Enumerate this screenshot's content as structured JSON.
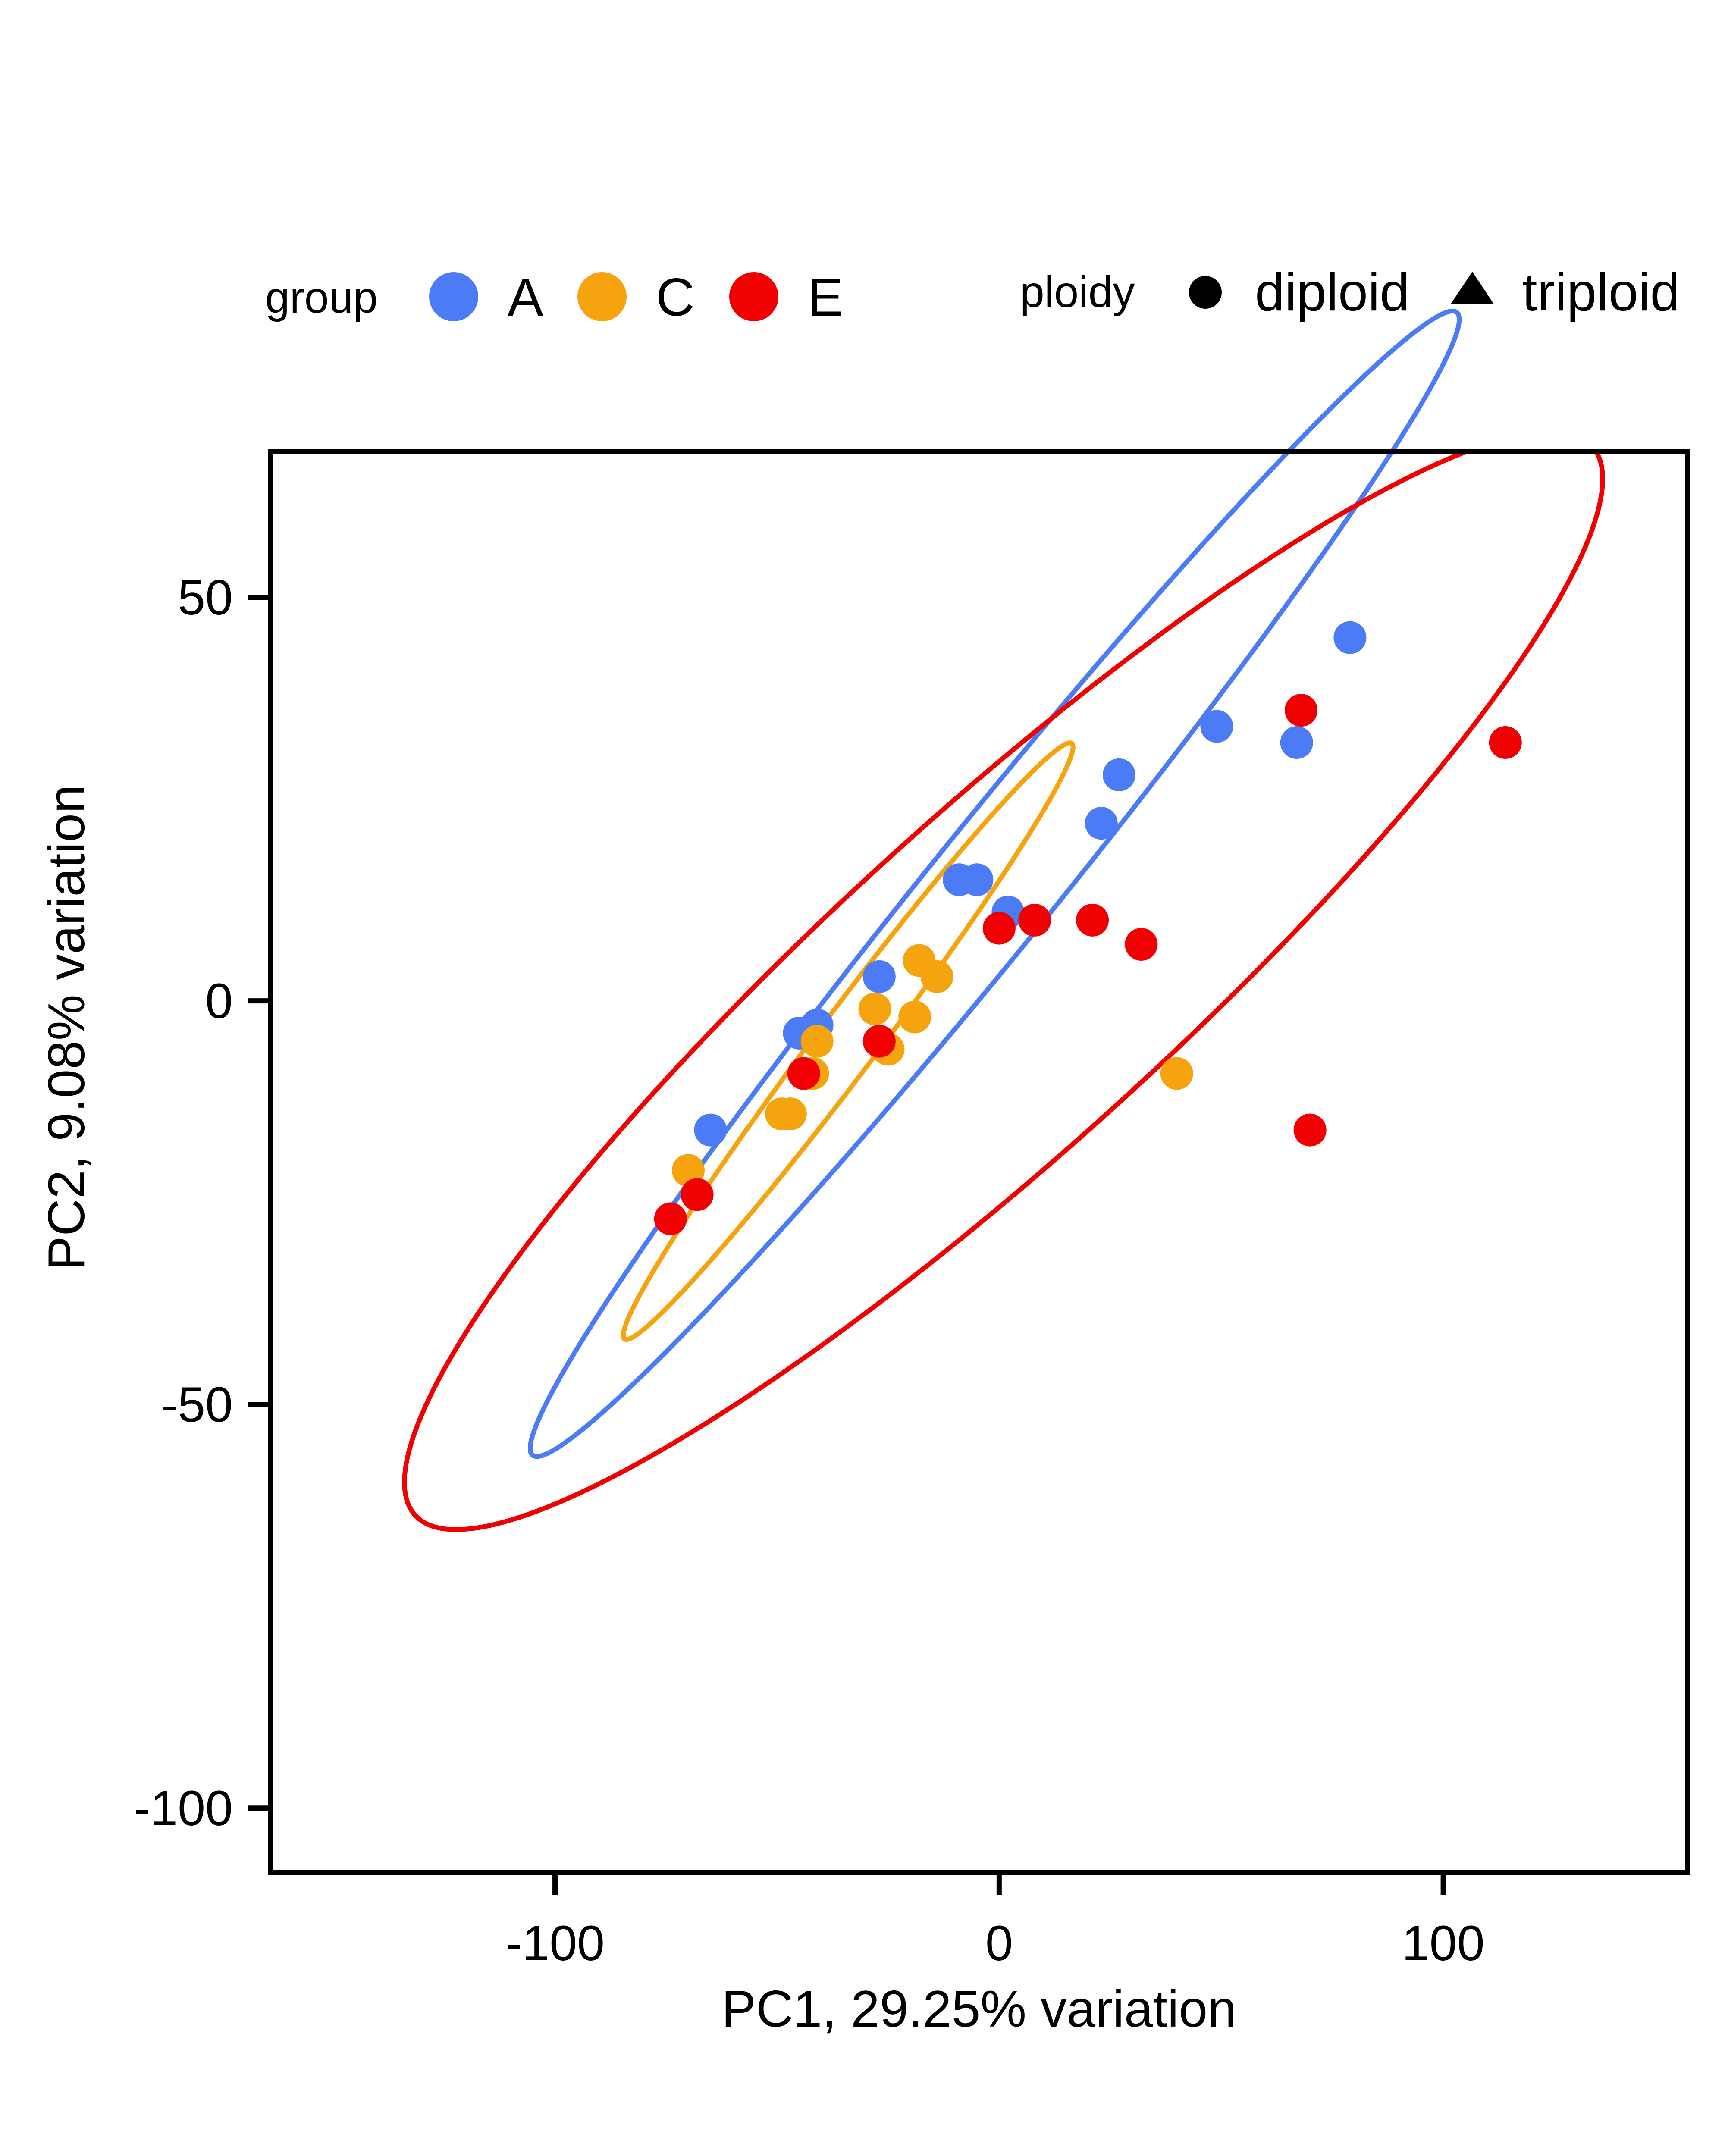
{
  "chart_data": {
    "type": "scatter",
    "xlabel": "PC1, 29.25% variation",
    "ylabel": "PC2, 9.08% variation",
    "xlim": [
      -164,
      155
    ],
    "ylim": [
      -108,
      68
    ],
    "xticks": [
      -100,
      0,
      100
    ],
    "xtick_labels": [
      "-100",
      "0",
      "100"
    ],
    "yticks": [
      50,
      0,
      -50,
      -100
    ],
    "ytick_labels": [
      "50",
      "0",
      "-50",
      "-100"
    ],
    "grid": false,
    "legend": {
      "placement": "top",
      "group_title": "group",
      "groups": [
        {
          "label": "A",
          "color": "#4B7BF5"
        },
        {
          "label": "C",
          "color": "#F5A30F"
        },
        {
          "label": "E",
          "color": "#F00000"
        }
      ],
      "ploidy_title": "ploidy",
      "ploidy": [
        {
          "label": "diploid",
          "shape": "circle"
        },
        {
          "label": "triploid",
          "shape": "triangle"
        }
      ]
    },
    "series": [
      {
        "name": "A",
        "color": "#4B7BF5",
        "points": [
          {
            "x": 79,
            "y": 45,
            "ploidy": "diploid"
          },
          {
            "x": 49,
            "y": 34,
            "ploidy": "diploid"
          },
          {
            "x": 67,
            "y": 32,
            "ploidy": "diploid"
          },
          {
            "x": 27,
            "y": 28,
            "ploidy": "diploid"
          },
          {
            "x": 23,
            "y": 22,
            "ploidy": "diploid"
          },
          {
            "x": -9,
            "y": 15,
            "ploidy": "diploid"
          },
          {
            "x": -5,
            "y": 15,
            "ploidy": "diploid"
          },
          {
            "x": 2,
            "y": 11,
            "ploidy": "diploid"
          },
          {
            "x": -27,
            "y": 3,
            "ploidy": "diploid"
          },
          {
            "x": -45,
            "y": -4,
            "ploidy": "diploid"
          },
          {
            "x": -41,
            "y": -3,
            "ploidy": "diploid"
          },
          {
            "x": -65,
            "y": -16,
            "ploidy": "diploid"
          }
        ],
        "ellipse": {
          "cx": -1,
          "cy": 14.5,
          "semi_major": 126,
          "semi_minor": 10,
          "angle_deg": 34
        }
      },
      {
        "name": "C",
        "color": "#F5A30F",
        "points": [
          {
            "x": -18,
            "y": 5,
            "ploidy": "diploid"
          },
          {
            "x": -14,
            "y": 3,
            "ploidy": "diploid"
          },
          {
            "x": -28,
            "y": -1,
            "ploidy": "diploid"
          },
          {
            "x": -19,
            "y": -2,
            "ploidy": "diploid"
          },
          {
            "x": -41,
            "y": -5,
            "ploidy": "diploid"
          },
          {
            "x": -25,
            "y": -6,
            "ploidy": "diploid"
          },
          {
            "x": -42,
            "y": -9,
            "ploidy": "diploid"
          },
          {
            "x": -49,
            "y": -14,
            "ploidy": "diploid"
          },
          {
            "x": -47,
            "y": -14,
            "ploidy": "diploid"
          },
          {
            "x": -70,
            "y": -21,
            "ploidy": "diploid"
          },
          {
            "x": 40,
            "y": -9,
            "ploidy": "diploid"
          }
        ],
        "ellipse": {
          "cx": -34,
          "cy": -5,
          "semi_major": 62.5,
          "semi_minor": 5,
          "angle_deg": 36
        }
      },
      {
        "name": "E",
        "color": "#F00000",
        "points": [
          {
            "x": 68,
            "y": 36,
            "ploidy": "diploid"
          },
          {
            "x": 114,
            "y": 32,
            "ploidy": "diploid"
          },
          {
            "x": 21,
            "y": 10,
            "ploidy": "diploid"
          },
          {
            "x": 8,
            "y": 10,
            "ploidy": "diploid"
          },
          {
            "x": 0,
            "y": 9,
            "ploidy": "diploid"
          },
          {
            "x": 32,
            "y": 7,
            "ploidy": "diploid"
          },
          {
            "x": -27,
            "y": -5,
            "ploidy": "diploid"
          },
          {
            "x": -44,
            "y": -9,
            "ploidy": "diploid"
          },
          {
            "x": -68,
            "y": -24,
            "ploidy": "diploid"
          },
          {
            "x": -74,
            "y": -27,
            "ploidy": "diploid"
          },
          {
            "x": 70,
            "y": -16,
            "ploidy": "diploid"
          }
        ],
        "ellipse": {
          "cx": 1,
          "cy": 2.5,
          "semi_major": 149,
          "semi_minor": 25,
          "angle_deg": 25.5,
          "clip_x_max": 139
        }
      }
    ]
  }
}
